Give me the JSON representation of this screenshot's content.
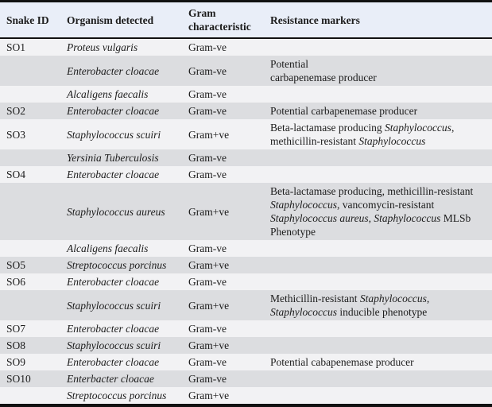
{
  "table": {
    "columns": [
      {
        "label": "Snake ID"
      },
      {
        "label": "Organism detected"
      },
      {
        "label": "Gram characteristic"
      },
      {
        "label": "Resistance markers"
      }
    ],
    "rows": [
      {
        "snake_id": "SO1",
        "organism": "Proteus vulgaris",
        "gram": "Gram-ve",
        "resistance": []
      },
      {
        "snake_id": "",
        "organism": "Enterobacter cloacae",
        "gram": "Gram-ve",
        "resistance": [
          {
            "t": "Potential"
          },
          {
            "br": true
          },
          {
            "t": "carbapenemase producer"
          }
        ]
      },
      {
        "snake_id": "",
        "organism": "Alcaligens faecalis",
        "gram": "Gram-ve",
        "resistance": []
      },
      {
        "snake_id": "SO2",
        "organism": "Enterobacter cloacae",
        "gram": "Gram-ve",
        "resistance": [
          {
            "t": "Potential carbapenemase producer"
          }
        ]
      },
      {
        "snake_id": "SO3",
        "organism": "Staphylococcus scuiri",
        "gram": "Gram+ve",
        "resistance": [
          {
            "t": "Beta-lactamase producing "
          },
          {
            "t": "Staphylococcus",
            "i": true
          },
          {
            "t": ", methicillin-resistant "
          },
          {
            "t": "Staphylococcus",
            "i": true
          }
        ]
      },
      {
        "snake_id": "",
        "organism": "Yersinia Tuberculosis",
        "gram": "Gram-ve",
        "resistance": []
      },
      {
        "snake_id": "SO4",
        "organism": "Enterobacter cloacae",
        "gram": "Gram-ve",
        "resistance": []
      },
      {
        "snake_id": "",
        "organism": "Staphylococcus aureus",
        "gram": "Gram+ve",
        "resistance": [
          {
            "t": "Beta-lactamase producing, methicillin-resistant "
          },
          {
            "t": "Staphylococcus",
            "i": true
          },
          {
            "t": ", vancomycin-resistant "
          },
          {
            "t": "Staphylococcus aureus",
            "i": true
          },
          {
            "t": ", "
          },
          {
            "t": "Staphylococcus",
            "i": true
          },
          {
            "t": " MLSb Phenotype"
          }
        ]
      },
      {
        "snake_id": "",
        "organism": "Alcaligens faecalis",
        "gram": "Gram-ve",
        "resistance": []
      },
      {
        "snake_id": "SO5",
        "organism": "Streptococcus porcinus",
        "gram": "Gram+ve",
        "resistance": []
      },
      {
        "snake_id": "SO6",
        "organism": "Enterobacter cloacae",
        "gram": "Gram-ve",
        "resistance": []
      },
      {
        "snake_id": "",
        "organism": "Staphylococcus scuiri",
        "gram": "Gram+ve",
        "resistance": [
          {
            "t": "Methicillin-resistant "
          },
          {
            "t": "Staphylococcus",
            "i": true
          },
          {
            "t": ","
          },
          {
            "br": true
          },
          {
            "t": "Staphylococcus",
            "i": true
          },
          {
            "t": " inducible phenotype"
          }
        ]
      },
      {
        "snake_id": "SO7",
        "organism": "Enterobacter cloacae",
        "gram": "Gram-ve",
        "resistance": []
      },
      {
        "snake_id": "SO8",
        "organism": "Staphylococcus scuiri",
        "gram": "Gram+ve",
        "resistance": []
      },
      {
        "snake_id": "SO9",
        "organism": "Enterobacter cloacae",
        "gram": "Gram-ve",
        "resistance": [
          {
            "t": "Potential cabapenemase producer"
          }
        ]
      },
      {
        "snake_id": "SO10",
        "organism": "Enterbacter cloacae",
        "gram": "Gram-ve",
        "resistance": []
      },
      {
        "snake_id": "",
        "organism": "Streptococcus porcinus",
        "gram": "Gram+ve",
        "resistance": []
      }
    ]
  },
  "colors": {
    "header_background": "#e9eef8",
    "row_plain": "#f2f2f4",
    "row_shaded": "#dcdde0",
    "border": "#111111",
    "text": "#1c1c1c"
  }
}
